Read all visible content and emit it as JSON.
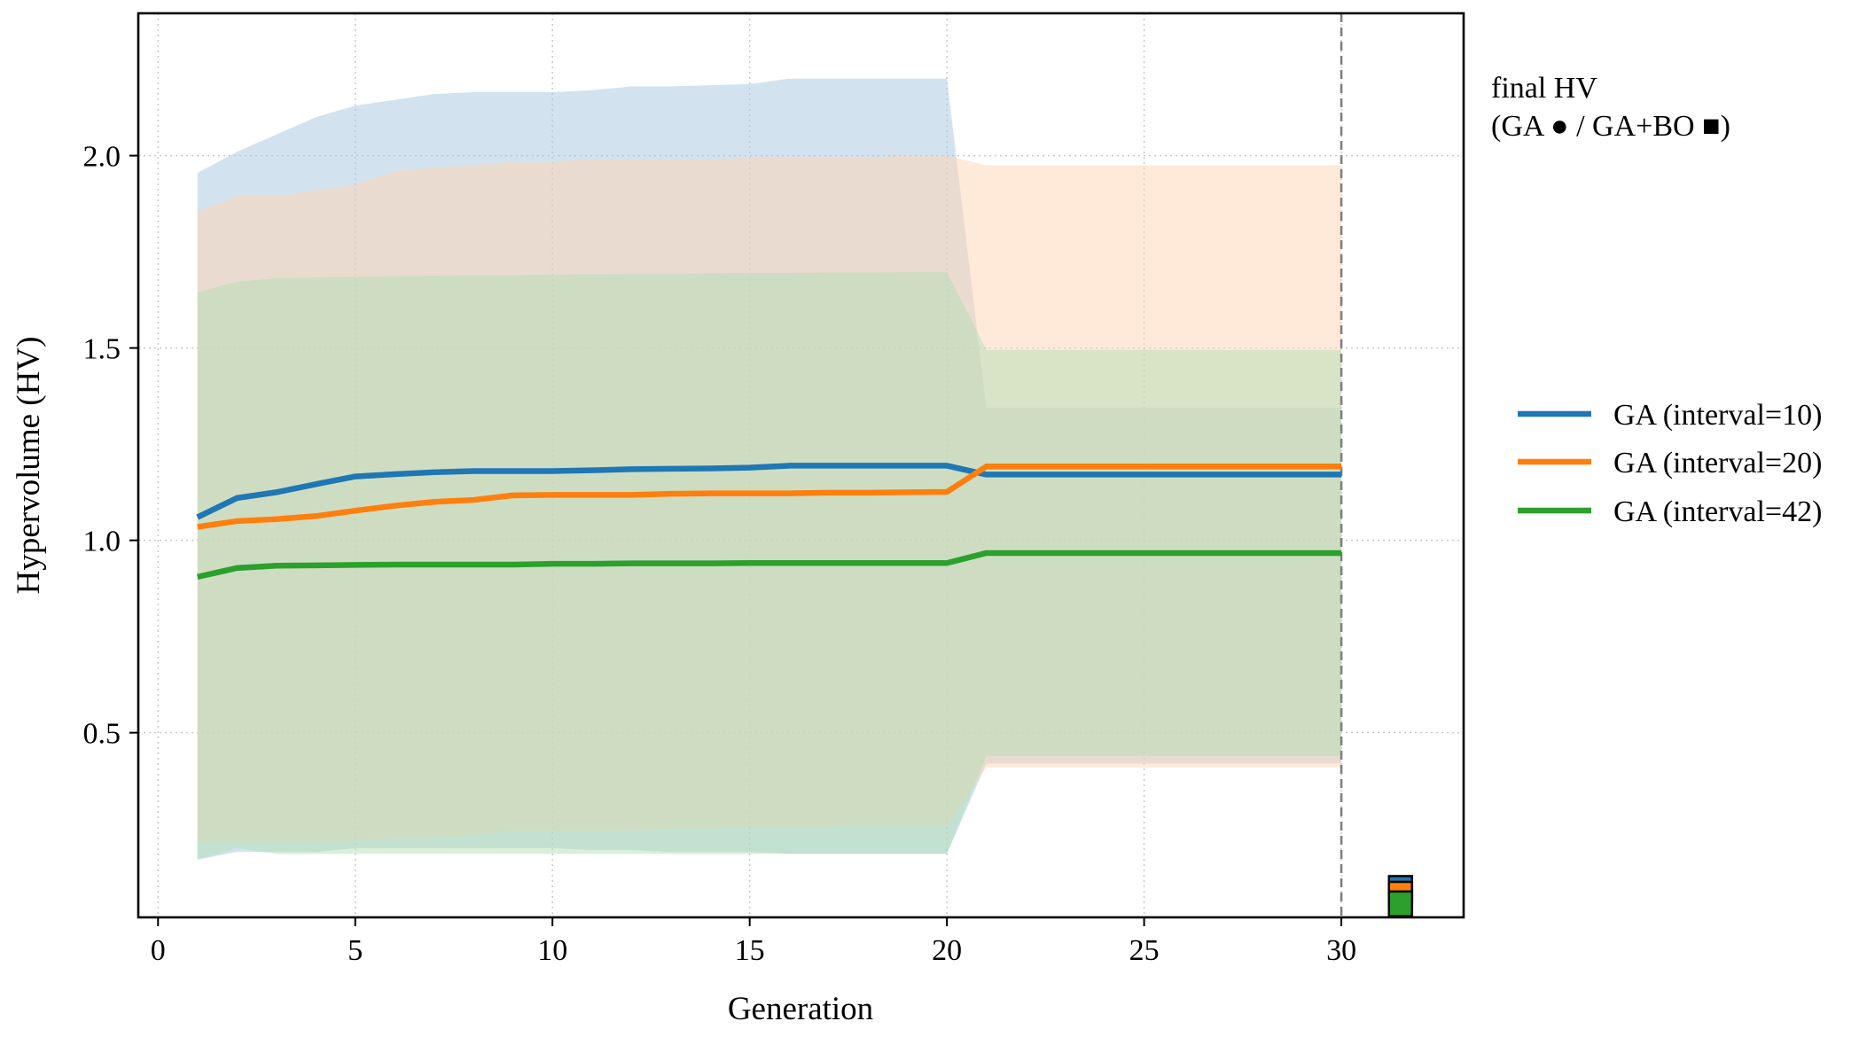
{
  "chart_data": {
    "type": "line",
    "xlabel": "Generation",
    "ylabel": "Hypervolume (HV)",
    "xlim": [
      -0.5,
      33.1
    ],
    "ylim": [
      0.02,
      2.37
    ],
    "xticks": [
      0,
      5,
      10,
      15,
      20,
      25,
      30
    ],
    "yticks": [
      0.5,
      1.0,
      1.5,
      2.0
    ],
    "ytick_labels": [
      "0.5",
      "1.0",
      "1.5",
      "2.0"
    ],
    "grid": true,
    "legend_placement": "right, outside plot",
    "reference_line_x": 30,
    "note_lines": [
      "final HV",
      "(GA ● / GA+BO ■)"
    ],
    "x": [
      1,
      2,
      3,
      4,
      5,
      6,
      7,
      8,
      9,
      10,
      11,
      12,
      13,
      14,
      15,
      16,
      17,
      18,
      19,
      20,
      21,
      22,
      23,
      24,
      25,
      26,
      27,
      28,
      29,
      30
    ],
    "series": [
      {
        "name": "GA (interval=10)",
        "color": "#1f77b4",
        "fill_color": "#a6c8e0",
        "values": [
          1.06,
          1.11,
          1.125,
          1.146,
          1.166,
          1.172,
          1.177,
          1.18,
          1.18,
          1.18,
          1.182,
          1.185,
          1.186,
          1.187,
          1.189,
          1.194,
          1.194,
          1.194,
          1.194,
          1.194,
          1.171,
          1.171,
          1.171,
          1.171,
          1.171,
          1.171,
          1.171,
          1.171,
          1.171,
          1.171
        ],
        "upper": [
          1.955,
          2.01,
          2.055,
          2.1,
          2.13,
          2.145,
          2.16,
          2.165,
          2.165,
          2.165,
          2.17,
          2.18,
          2.18,
          2.183,
          2.186,
          2.2,
          2.2,
          2.2,
          2.2,
          2.2,
          1.345,
          1.345,
          1.345,
          1.345,
          1.345,
          1.345,
          1.345,
          1.345,
          1.345,
          1.345
        ],
        "lower": [
          0.17,
          0.19,
          0.19,
          0.19,
          0.2,
          0.2,
          0.2,
          0.2,
          0.2,
          0.2,
          0.195,
          0.195,
          0.19,
          0.19,
          0.19,
          0.185,
          0.185,
          0.185,
          0.185,
          0.185,
          0.42,
          0.42,
          0.42,
          0.42,
          0.42,
          0.42,
          0.42,
          0.42,
          0.42,
          0.42
        ],
        "final_marker": 0.095
      },
      {
        "name": "GA (interval=20)",
        "color": "#ff7f0e",
        "fill_color": "#ffd3b1",
        "values": [
          1.035,
          1.05,
          1.055,
          1.063,
          1.077,
          1.09,
          1.1,
          1.105,
          1.117,
          1.118,
          1.118,
          1.118,
          1.121,
          1.122,
          1.122,
          1.122,
          1.124,
          1.124,
          1.125,
          1.126,
          1.192,
          1.192,
          1.192,
          1.192,
          1.192,
          1.192,
          1.192,
          1.192,
          1.192,
          1.192
        ],
        "upper": [
          1.855,
          1.895,
          1.895,
          1.91,
          1.925,
          1.96,
          1.97,
          1.975,
          1.985,
          1.985,
          1.99,
          1.99,
          1.99,
          1.99,
          1.995,
          1.995,
          1.995,
          1.995,
          2.0,
          2.0,
          1.975,
          1.975,
          1.975,
          1.975,
          1.975,
          1.975,
          1.975,
          1.975,
          1.975,
          1.975
        ],
        "lower": [
          0.215,
          0.215,
          0.215,
          0.215,
          0.22,
          0.225,
          0.23,
          0.235,
          0.245,
          0.245,
          0.245,
          0.245,
          0.25,
          0.25,
          0.255,
          0.255,
          0.255,
          0.26,
          0.26,
          0.26,
          0.41,
          0.41,
          0.41,
          0.41,
          0.41,
          0.41,
          0.41,
          0.41,
          0.41,
          0.41
        ],
        "final_marker": 0.08
      },
      {
        "name": "GA (interval=42)",
        "color": "#2ca02c",
        "fill_color": "#b4dfb4",
        "values": [
          0.905,
          0.928,
          0.934,
          0.935,
          0.936,
          0.937,
          0.937,
          0.937,
          0.937,
          0.939,
          0.939,
          0.94,
          0.94,
          0.94,
          0.941,
          0.941,
          0.941,
          0.941,
          0.941,
          0.941,
          0.967,
          0.967,
          0.967,
          0.967,
          0.967,
          0.967,
          0.967,
          0.967,
          0.967,
          0.967
        ],
        "upper": [
          1.645,
          1.672,
          1.681,
          1.683,
          1.685,
          1.687,
          1.688,
          1.689,
          1.69,
          1.691,
          1.692,
          1.693,
          1.693,
          1.694,
          1.695,
          1.695,
          1.696,
          1.696,
          1.697,
          1.697,
          1.495,
          1.495,
          1.495,
          1.495,
          1.495,
          1.495,
          1.495,
          1.495,
          1.495,
          1.495
        ],
        "lower": [
          0.17,
          0.2,
          0.185,
          0.185,
          0.185,
          0.185,
          0.185,
          0.185,
          0.185,
          0.185,
          0.185,
          0.185,
          0.185,
          0.185,
          0.185,
          0.185,
          0.185,
          0.185,
          0.185,
          0.185,
          0.44,
          0.44,
          0.44,
          0.44,
          0.44,
          0.44,
          0.44,
          0.44,
          0.44,
          0.44
        ],
        "final_marker": 0.055
      }
    ]
  }
}
